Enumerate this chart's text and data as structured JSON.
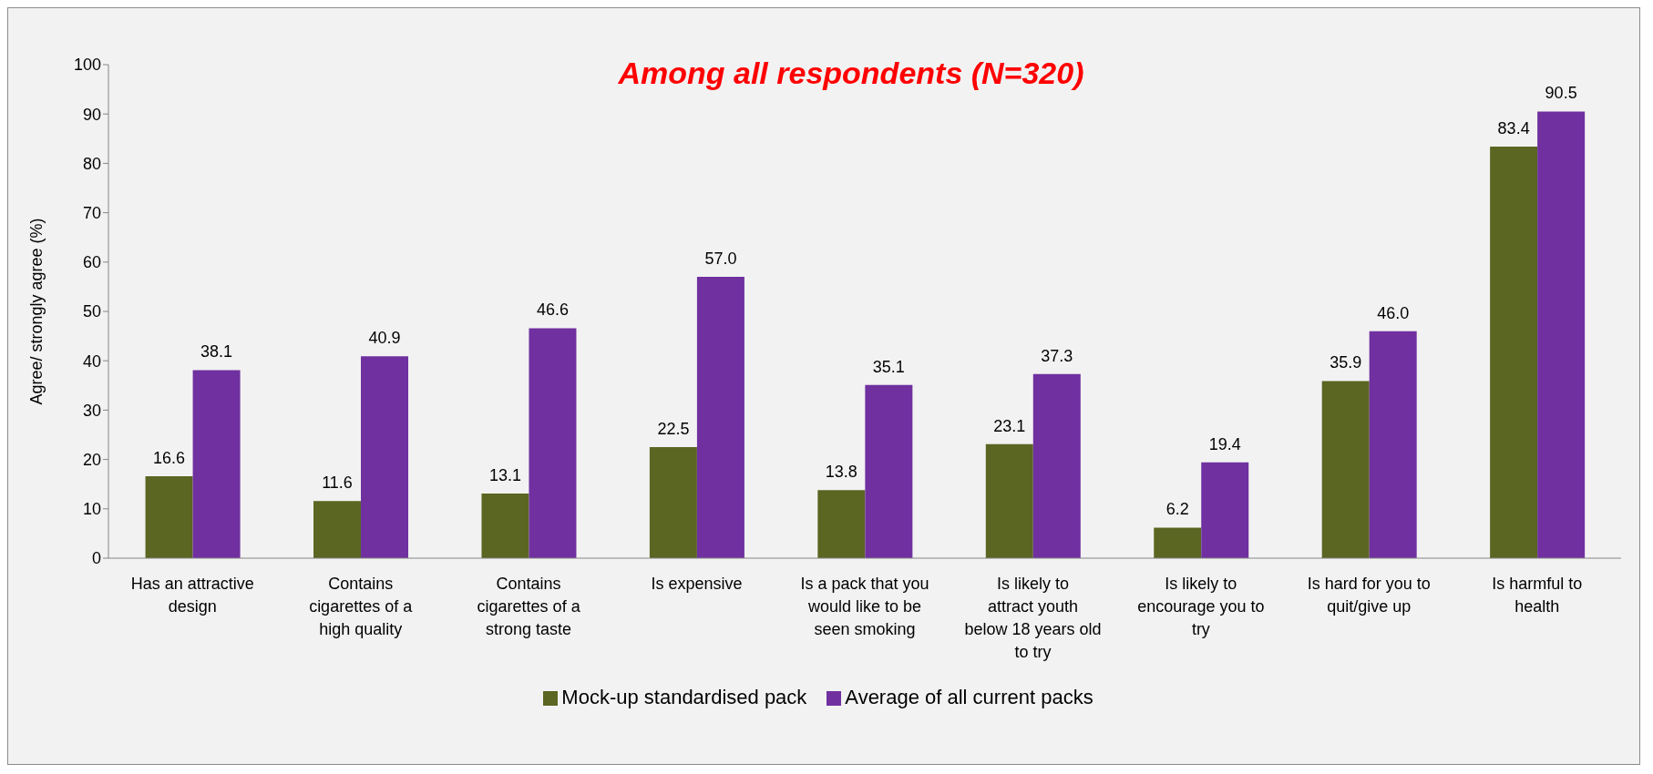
{
  "chart_data": {
    "type": "bar",
    "title": "Among all respondents (N=320)",
    "ylabel": "Agree/ strongly agree (%)",
    "categories": [
      "Has an attractive design",
      "Contains cigarettes of a high quality",
      "Contains cigarettes of a strong taste",
      "Is expensive",
      "Is a pack that you would like to be seen smoking",
      "Is likely to attract youth below 18 years old to try",
      "Is likely to encourage you to try",
      "Is hard for you to quit/give up",
      "Is harmful to health"
    ],
    "series": [
      {
        "name": "Mock-up standardised pack",
        "color": "#5a6621",
        "values": [
          16.6,
          11.6,
          13.1,
          22.5,
          13.8,
          23.1,
          6.2,
          35.9,
          83.4
        ],
        "value_labels": [
          "16.6",
          "11.6",
          "13.1",
          "22.5",
          "13.8",
          "23.1",
          "6.2",
          "35.9",
          "83.4"
        ]
      },
      {
        "name": "Average of all current packs",
        "color": "#7030a0",
        "values": [
          38.1,
          40.9,
          46.6,
          57.0,
          35.1,
          37.3,
          19.4,
          46.0,
          90.5
        ],
        "value_labels": [
          "38.1",
          "40.9",
          "46.6",
          "57.0",
          "35.1",
          "37.3",
          "19.4",
          "46.0",
          "90.5"
        ]
      }
    ],
    "ylim": [
      0,
      100
    ],
    "yticks": [
      0,
      10,
      20,
      30,
      40,
      50,
      60,
      70,
      80,
      90,
      100
    ],
    "grid": false,
    "legend": "bottom"
  }
}
